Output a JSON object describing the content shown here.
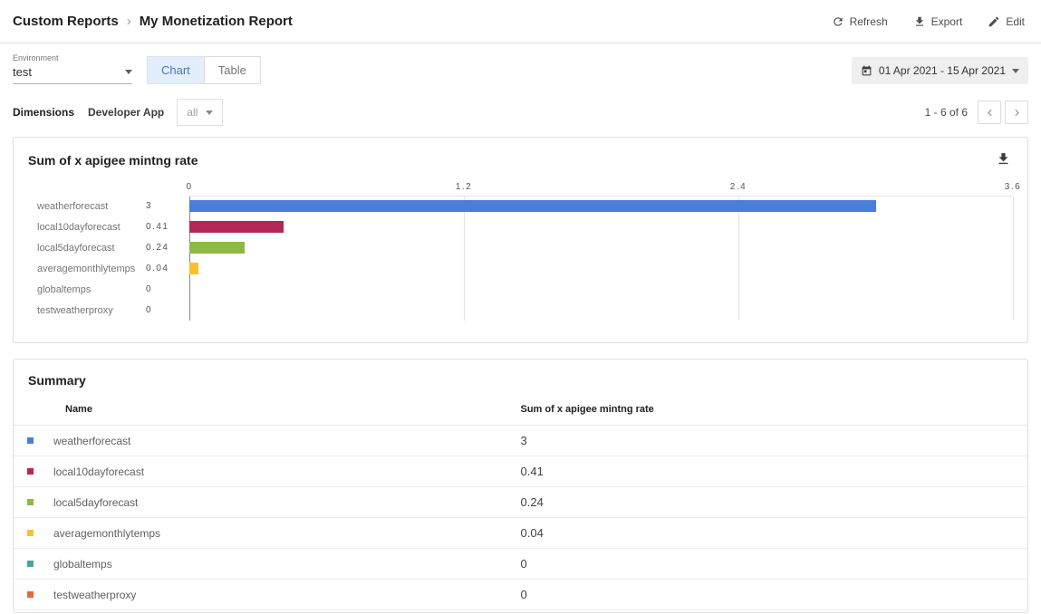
{
  "header": {
    "breadcrumb_root": "Custom Reports",
    "breadcrumb_separator": "›",
    "title": "My Monetization Report",
    "actions": [
      {
        "label": "Refresh",
        "icon": "refresh-icon"
      },
      {
        "label": "Export",
        "icon": "download-icon"
      },
      {
        "label": "Edit",
        "icon": "edit-icon"
      }
    ]
  },
  "toolbar": {
    "environment_label": "Environment",
    "environment_value": "test",
    "view_tabs": [
      {
        "label": "Chart",
        "active": true
      },
      {
        "label": "Table",
        "active": false
      }
    ],
    "date_range": "01 Apr 2021 - 15 Apr 2021"
  },
  "dimensions_bar": {
    "label": "Dimensions",
    "dimension_name": "Developer App",
    "dimension_value": "all",
    "pagination": "1 - 6 of 6"
  },
  "chart_data": {
    "type": "bar",
    "orientation": "horizontal",
    "title": "Sum of x apigee mintng rate",
    "categories": [
      "weatherforecast",
      "local10dayforecast",
      "local5dayforecast",
      "averagemonthlytemps",
      "globaltemps",
      "testweatherproxy"
    ],
    "values": [
      3,
      0.41,
      0.24,
      0.04,
      0,
      0
    ],
    "value_labels": [
      "3",
      "0.41",
      "0.24",
      "0.04",
      "0",
      "0"
    ],
    "x_tick_labels": [
      "0",
      "1.2",
      "2.4",
      "3.6"
    ],
    "x_tick_values": [
      0,
      1.2,
      2.4,
      3.6
    ],
    "xlim": [
      0,
      3.6
    ],
    "bar_colors": [
      "#4a7edb",
      "#b2265a",
      "#8cba44",
      "#fbc12d",
      "#45a5a2",
      "#e5683a"
    ],
    "grid": true,
    "legend": "none"
  },
  "summary": {
    "title": "Summary",
    "columns": [
      "Name",
      "Sum of x apigee mintng rate"
    ],
    "rows": [
      {
        "name": "weatherforecast",
        "value": "3"
      },
      {
        "name": "local10dayforecast",
        "value": "0.41"
      },
      {
        "name": "local5dayforecast",
        "value": "0.24"
      },
      {
        "name": "averagemonthlytemps",
        "value": "0.04"
      },
      {
        "name": "globaltemps",
        "value": "0"
      },
      {
        "name": "testweatherproxy",
        "value": "0"
      }
    ]
  }
}
